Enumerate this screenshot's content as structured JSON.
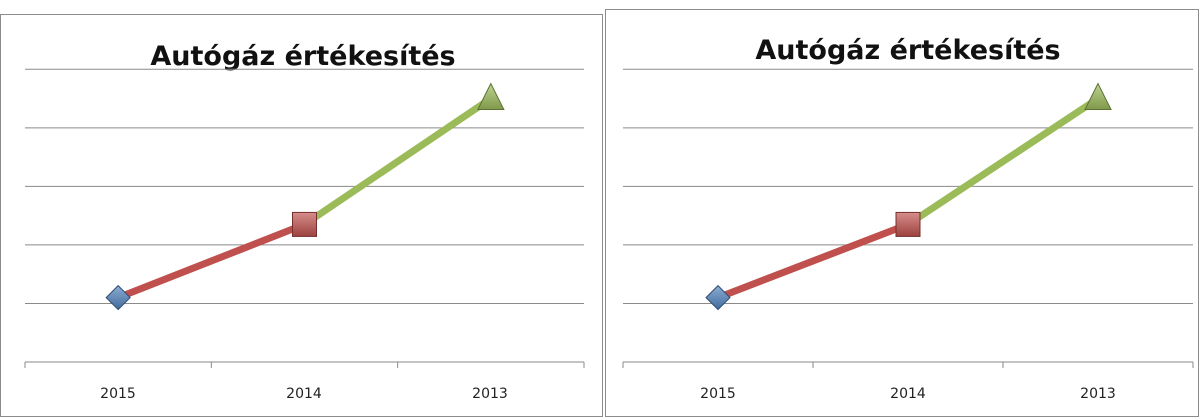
{
  "chart_data": [
    {
      "type": "line",
      "title": "Autógáz értékesítés",
      "xlabel": "",
      "ylabel": "",
      "categories": [
        "2015",
        "2014",
        "2013"
      ],
      "values": [
        1.1,
        2.35,
        4.5
      ],
      "ylim": [
        0,
        5.5
      ],
      "grid": true,
      "y_tick_labels_shown": false,
      "segment_colors": [
        "#c0504d",
        "#9bbb59"
      ],
      "marker_colors": [
        "#4f81bd",
        "#c0504d",
        "#9bbb59"
      ],
      "marker_shapes": [
        "diamond",
        "square",
        "triangle"
      ]
    },
    {
      "type": "line",
      "title": "Autógáz értékesítés",
      "xlabel": "",
      "ylabel": "",
      "categories": [
        "2015",
        "2014",
        "2013"
      ],
      "values": [
        1.1,
        2.35,
        4.5
      ],
      "ylim": [
        0,
        5.5
      ],
      "grid": true,
      "y_tick_labels_shown": false,
      "segment_colors": [
        "#c0504d",
        "#9bbb59"
      ],
      "marker_colors": [
        "#4f81bd",
        "#c0504d",
        "#9bbb59"
      ],
      "marker_shapes": [
        "diamond",
        "square",
        "triangle"
      ]
    }
  ]
}
